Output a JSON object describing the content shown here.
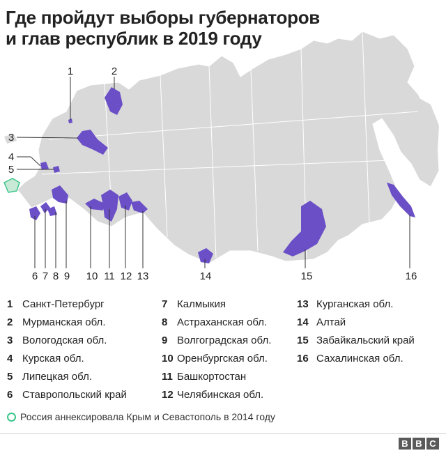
{
  "title_line1": "Где пройдут выборы губернаторов",
  "title_line2": "и глав республик в 2019 году",
  "colors": {
    "land": "#d9d9d9",
    "election_region": "#6a4fc7",
    "crimea_outline": "#3cc68a",
    "text": "#222222"
  },
  "map_numbers": [
    "1",
    "2",
    "3",
    "4",
    "5",
    "6",
    "7",
    "8",
    "9",
    "10",
    "11",
    "12",
    "13",
    "14",
    "15",
    "16"
  ],
  "legend": {
    "col1": [
      {
        "n": "1",
        "label": "Санкт-Петербург"
      },
      {
        "n": "2",
        "label": "Мурманская обл."
      },
      {
        "n": "3",
        "label": "Вологодская обл."
      },
      {
        "n": "4",
        "label": "Курская обл."
      },
      {
        "n": "5",
        "label": "Липецкая обл."
      },
      {
        "n": "6",
        "label": "Ставропольский край"
      }
    ],
    "col2": [
      {
        "n": "7",
        "label": "Калмыкия"
      },
      {
        "n": "8",
        "label": "Астраханская обл."
      },
      {
        "n": "9",
        "label": "Волгоградская обл."
      },
      {
        "n": "10",
        "label": "Оренбургская обл."
      },
      {
        "n": "11",
        "label": "Башкортостан"
      },
      {
        "n": "12",
        "label": "Челябинская обл."
      }
    ],
    "col3": [
      {
        "n": "13",
        "label": "Курганская обл."
      },
      {
        "n": "14",
        "label": "Алтай"
      },
      {
        "n": "15",
        "label": "Забайкальский край"
      },
      {
        "n": "16",
        "label": "Сахалинская обл."
      }
    ]
  },
  "crimea_note": "Россия аннексировала Крым и Севастополь в 2014 году",
  "brand": [
    "B",
    "B",
    "C"
  ]
}
